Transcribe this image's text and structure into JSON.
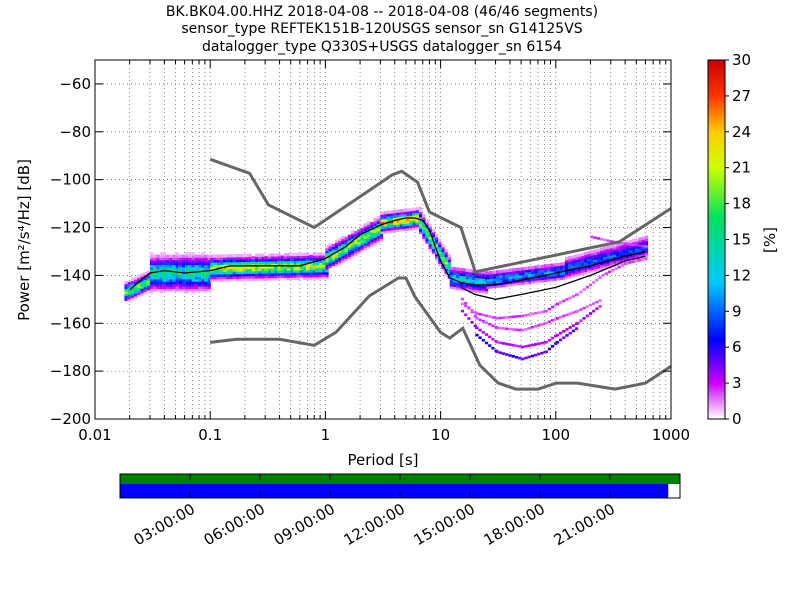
{
  "chart_data": {
    "type": "heatmap",
    "title_lines": [
      "BK.BK04.00.HHZ   2018-04-08 -- 2018-04-08  (46/46 segments)",
      "sensor_type REFTEK151B-120USGS sensor_sn G14125VS",
      "datalogger_type Q330S+USGS datalogger_sn 6154"
    ],
    "xlabel": "Period [s]",
    "ylabel": "Power [m²/s⁴/Hz] [dB]",
    "x_scale": "log",
    "xlim": [
      0.01,
      1000
    ],
    "ylim": [
      -200,
      -50
    ],
    "x_ticks": [
      {
        "value": 0.01,
        "label": "0.01"
      },
      {
        "value": 0.1,
        "label": "0.1"
      },
      {
        "value": 1,
        "label": "1"
      },
      {
        "value": 10,
        "label": "10"
      },
      {
        "value": 100,
        "label": "100"
      },
      {
        "value": 1000,
        "label": "1000"
      }
    ],
    "y_ticks": [
      -60,
      -80,
      -100,
      -120,
      -140,
      -160,
      -180,
      -200
    ],
    "grid": "dotted",
    "colorbar": {
      "label": "[%]",
      "min": 0,
      "max": 30,
      "ticks": [
        0,
        3,
        6,
        9,
        12,
        15,
        18,
        21,
        24,
        27,
        30
      ],
      "colormap": [
        "#ffffff",
        "#cc00ff",
        "#0000ff",
        "#00c8ff",
        "#00e060",
        "#ccff00",
        "#ffcc00",
        "#ff3300",
        "#cc0000"
      ]
    },
    "noise_model_color": "#666666",
    "high_noise_model": {
      "period": [
        0.1,
        0.22,
        0.32,
        0.8,
        3.8,
        4.6,
        6.3,
        8,
        15,
        20,
        354.8,
        1000
      ],
      "power": [
        -91.5,
        -97.4,
        -110.5,
        -120,
        -98,
        -96.5,
        -101,
        -113.5,
        -120,
        -138.5,
        -126,
        -112
      ]
    },
    "low_noise_model": {
      "period": [
        0.1,
        0.17,
        0.4,
        0.8,
        1.24,
        2.4,
        4.3,
        5,
        6,
        10,
        12,
        15.6,
        21.9,
        31.6,
        45,
        70,
        101,
        154,
        328,
        600,
        1000
      ],
      "power": [
        -168,
        -166.7,
        -166.7,
        -169.2,
        -163.7,
        -148.6,
        -141.1,
        -141.1,
        -149,
        -163.8,
        -166.2,
        -162.1,
        -177.5,
        -185,
        -187.5,
        -187.5,
        -185,
        -185,
        -187.5,
        -185,
        -178
      ]
    },
    "median_curve": {
      "period": [
        0.02,
        0.025,
        0.03,
        0.04,
        0.06,
        0.1,
        0.15,
        0.3,
        0.6,
        1,
        1.5,
        2,
        3,
        4,
        5,
        6,
        7,
        8,
        9,
        10,
        12,
        15,
        20,
        30,
        50,
        100,
        200,
        400,
        600
      ],
      "power": [
        -146,
        -142,
        -139,
        -138,
        -139,
        -138,
        -136,
        -136,
        -136,
        -133,
        -128,
        -123,
        -119,
        -117,
        -116,
        -116,
        -117,
        -121,
        -128,
        -134,
        -141,
        -143,
        -144,
        -144,
        -142,
        -139,
        -136,
        -132,
        -130
      ]
    },
    "min_curve": {
      "period": [
        15,
        20,
        30,
        50,
        100,
        200,
        400,
        600
      ],
      "power": [
        -145,
        -148,
        -150,
        -148,
        -145,
        -140,
        -134,
        -132
      ]
    },
    "bands": [
      {
        "p0": 0.018,
        "p1": 0.03,
        "center": [
          -147,
          -142
        ],
        "spread": 4,
        "pct": 18
      },
      {
        "p0": 0.03,
        "p1": 0.1,
        "center": [
          -139,
          -139
        ],
        "spread": 8,
        "pct": 14
      },
      {
        "p0": 0.1,
        "p1": 1.0,
        "center": [
          -137,
          -136
        ],
        "spread": 5,
        "pct": 20
      },
      {
        "p0": 1.0,
        "p1": 3.0,
        "center": [
          -133,
          -120
        ],
        "spread": 5,
        "pct": 19
      },
      {
        "p0": 3.0,
        "p1": 6.5,
        "center": [
          -118,
          -116
        ],
        "spread": 4,
        "pct": 23
      },
      {
        "p0": 6.5,
        "p1": 12,
        "center": [
          -118,
          -138
        ],
        "spread": 5,
        "pct": 18
      },
      {
        "p0": 12,
        "p1": 25,
        "center": [
          -141,
          -143
        ],
        "spread": 5,
        "pct": 12
      },
      {
        "p0": 25,
        "p1": 120,
        "center": [
          -142,
          -138
        ],
        "spread": 4,
        "pct": 10
      },
      {
        "p0": 120,
        "p1": 600,
        "center": [
          -137,
          -128
        ],
        "spread": 5,
        "pct": 8
      }
    ],
    "outlier_traces": [
      {
        "period": [
          15,
          20,
          30,
          50,
          80,
          100,
          150,
          250
        ],
        "power": [
          -150,
          -158,
          -162,
          -163,
          -160,
          -158,
          -155,
          -150
        ],
        "pct": 2
      },
      {
        "period": [
          15,
          20,
          30,
          50,
          80,
          100,
          150,
          250
        ],
        "power": [
          -155,
          -162,
          -168,
          -170,
          -168,
          -165,
          -160,
          -152
        ],
        "pct": 3
      },
      {
        "period": [
          20,
          30,
          50,
          80,
          100,
          150
        ],
        "power": [
          -165,
          -172,
          -175,
          -172,
          -168,
          -162
        ],
        "pct": 5
      },
      {
        "period": [
          15,
          20,
          30,
          50,
          80,
          100,
          150,
          250,
          400,
          600
        ],
        "power": [
          -152,
          -156,
          -158,
          -157,
          -155,
          -152,
          -148,
          -140,
          -135,
          -133
        ],
        "pct": 2
      },
      {
        "period": [
          200,
          300,
          400,
          600
        ],
        "power": [
          -124,
          -126,
          -127,
          -128
        ],
        "pct": 2
      }
    ],
    "timeline": {
      "coverage_fraction": 0.979,
      "tick_labels": [
        "03:00:00",
        "06:00:00",
        "09:00:00",
        "12:00:00",
        "15:00:00",
        "18:00:00",
        "21:00:00"
      ],
      "tick_fractions": [
        0.125,
        0.25,
        0.375,
        0.5,
        0.625,
        0.75,
        0.875
      ],
      "top_band_color": "#008000",
      "coverage_color": "#0000ff"
    }
  }
}
